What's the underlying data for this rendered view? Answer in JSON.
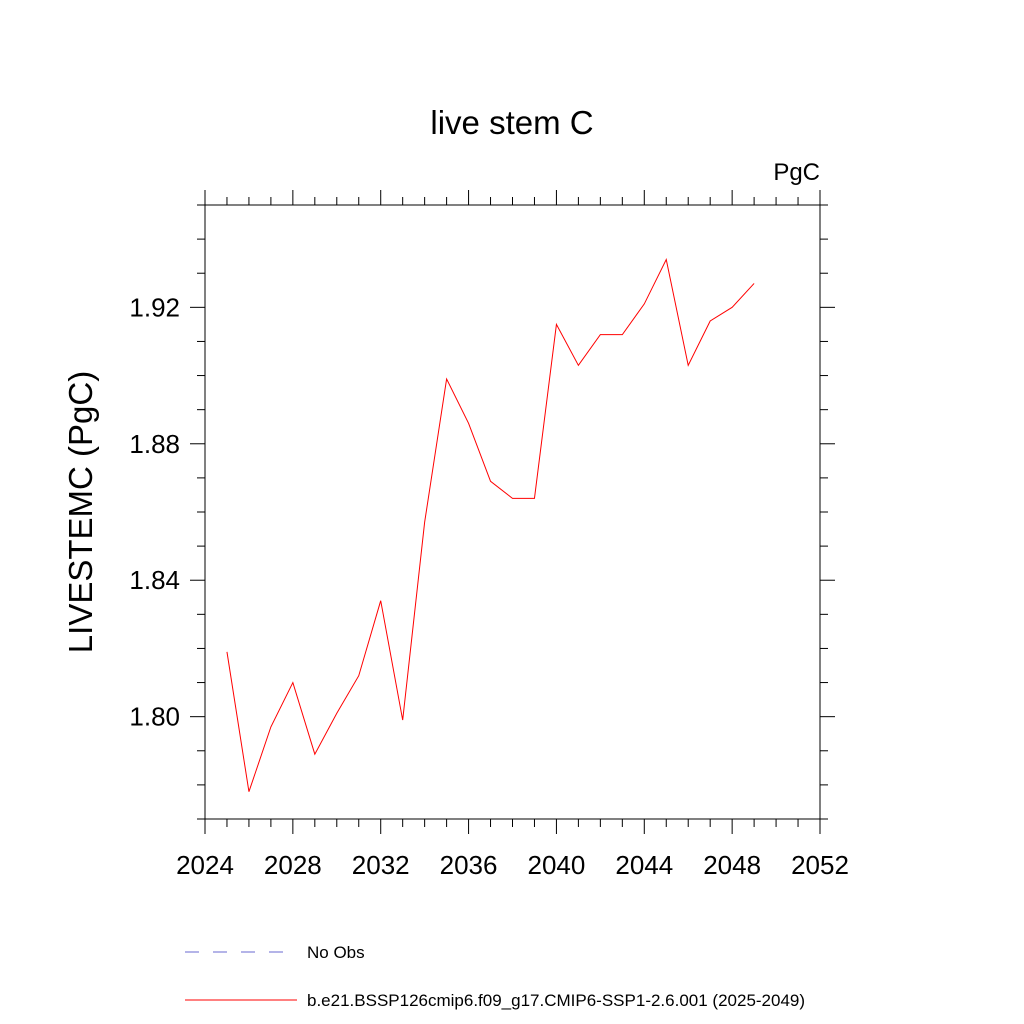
{
  "chart_data": {
    "type": "line",
    "title": "live stem C",
    "units": "PgC",
    "xlabel": "",
    "ylabel": "LIVESTEMC  (PgC)",
    "xlim": [
      2024,
      2052
    ],
    "ylim": [
      1.77,
      1.95
    ],
    "x_ticks": [
      2024,
      2028,
      2032,
      2036,
      2040,
      2044,
      2048,
      2052
    ],
    "y_ticks": [
      1.8,
      1.84,
      1.88,
      1.92
    ],
    "y_tick_labels": [
      "1.80",
      "1.84",
      "1.88",
      "1.92"
    ],
    "grid": false,
    "legend_position": "bottom",
    "series": [
      {
        "name": "b.e21.BSSP126cmip6.f09_g17.CMIP6-SSP1-2.6.001 (2025-2049)",
        "color": "#ff0000",
        "dash": "solid",
        "x": [
          2025,
          2026,
          2027,
          2028,
          2029,
          2030,
          2031,
          2032,
          2033,
          2034,
          2035,
          2036,
          2037,
          2038,
          2039,
          2040,
          2041,
          2042,
          2043,
          2044,
          2045,
          2046,
          2047,
          2048,
          2049
        ],
        "values": [
          1.819,
          1.778,
          1.797,
          1.81,
          1.789,
          1.801,
          1.812,
          1.834,
          1.799,
          1.857,
          1.899,
          1.886,
          1.869,
          1.864,
          1.864,
          1.915,
          1.903,
          1.912,
          1.912,
          1.921,
          1.934,
          1.903,
          1.916,
          1.92,
          1.927
        ]
      }
    ],
    "legend": [
      {
        "label": "No Obs",
        "color": "#6a6ad0",
        "dash": "dashed"
      },
      {
        "label": "b.e21.BSSP126cmip6.f09_g17.CMIP6-SSP1-2.6.001 (2025-2049)",
        "color": "#ff0000",
        "dash": "solid"
      }
    ]
  }
}
